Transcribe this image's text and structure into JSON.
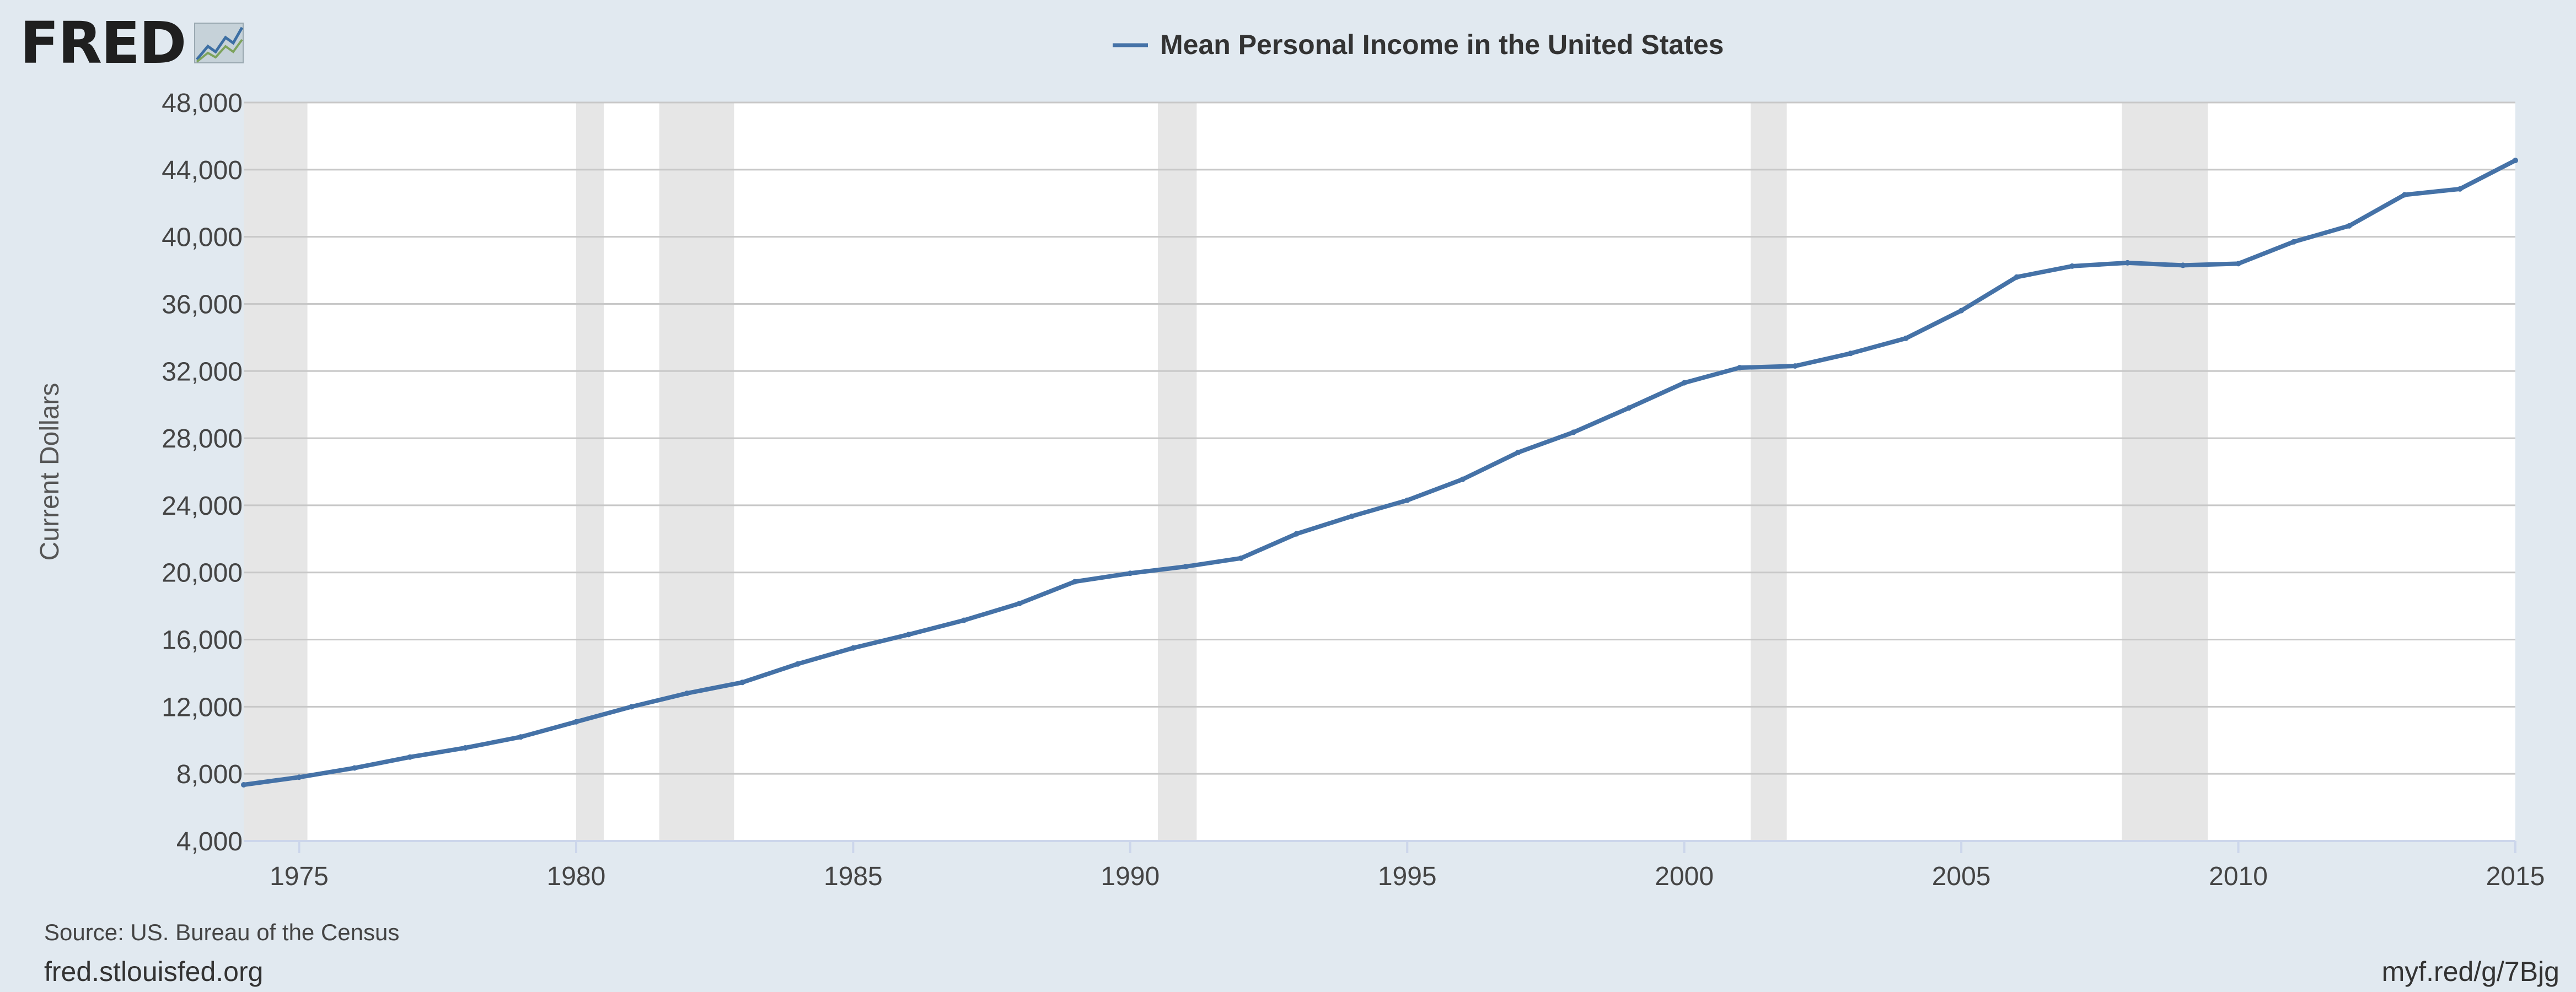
{
  "logo": {
    "text": "FRED",
    "icon": "line-graph-icon"
  },
  "footer": {
    "source": "Source: US. Bureau of the Census",
    "site": "fred.stlouisfed.org",
    "short_url": "myf.red/g/7Bjg"
  },
  "colors": {
    "background": "#e1e9f0",
    "plot_background": "#ffffff",
    "series": "#4572a7",
    "recession": "#e6e6e6",
    "grid": "#c8c8c8",
    "axis": "#ccd6eb"
  },
  "chart_data": {
    "type": "line",
    "title": "",
    "xlabel": "",
    "ylabel": "Current Dollars",
    "xlim": [
      1974,
      2015
    ],
    "ylim": [
      4000,
      48000
    ],
    "grid": true,
    "legend_position": "top-center",
    "y_ticks": [
      {
        "value": 4000,
        "label": "4,000"
      },
      {
        "value": 8000,
        "label": "8,000"
      },
      {
        "value": 12000,
        "label": "12,000"
      },
      {
        "value": 16000,
        "label": "16,000"
      },
      {
        "value": 20000,
        "label": "20,000"
      },
      {
        "value": 24000,
        "label": "24,000"
      },
      {
        "value": 28000,
        "label": "28,000"
      },
      {
        "value": 32000,
        "label": "32,000"
      },
      {
        "value": 36000,
        "label": "36,000"
      },
      {
        "value": 40000,
        "label": "40,000"
      },
      {
        "value": 44000,
        "label": "44,000"
      },
      {
        "value": 48000,
        "label": "48,000"
      }
    ],
    "x_ticks": [
      {
        "value": 1975,
        "label": "1975"
      },
      {
        "value": 1980,
        "label": "1980"
      },
      {
        "value": 1985,
        "label": "1985"
      },
      {
        "value": 1990,
        "label": "1990"
      },
      {
        "value": 1995,
        "label": "1995"
      },
      {
        "value": 2000,
        "label": "2000"
      },
      {
        "value": 2005,
        "label": "2005"
      },
      {
        "value": 2010,
        "label": "2010"
      },
      {
        "value": 2015,
        "label": "2015"
      }
    ],
    "recessions": [
      [
        1974.0,
        1975.15
      ],
      [
        1980.0,
        1980.5
      ],
      [
        1981.5,
        1982.85
      ],
      [
        1990.5,
        1991.2
      ],
      [
        2001.2,
        2001.85
      ],
      [
        2007.9,
        2009.45
      ]
    ],
    "series": [
      {
        "name": "Mean Personal Income in the United States",
        "x": [
          1974,
          1975,
          1976,
          1977,
          1978,
          1979,
          1980,
          1981,
          1982,
          1983,
          1984,
          1985,
          1986,
          1987,
          1988,
          1989,
          1990,
          1991,
          1992,
          1993,
          1994,
          1995,
          1996,
          1997,
          1998,
          1999,
          2000,
          2001,
          2002,
          2003,
          2004,
          2005,
          2006,
          2007,
          2008,
          2009,
          2010,
          2011,
          2012,
          2013,
          2014,
          2015
        ],
        "values": [
          7350,
          7800,
          8350,
          9000,
          9550,
          10200,
          11100,
          12000,
          12800,
          13450,
          14550,
          15500,
          16300,
          17150,
          18150,
          19450,
          19950,
          20350,
          20850,
          22300,
          23350,
          24300,
          25550,
          27150,
          28350,
          29800,
          31300,
          32200,
          32300,
          33050,
          33950,
          35600,
          37600,
          38250,
          38450,
          38300,
          38400,
          39700,
          40650,
          42500,
          42850,
          44550
        ]
      }
    ]
  }
}
